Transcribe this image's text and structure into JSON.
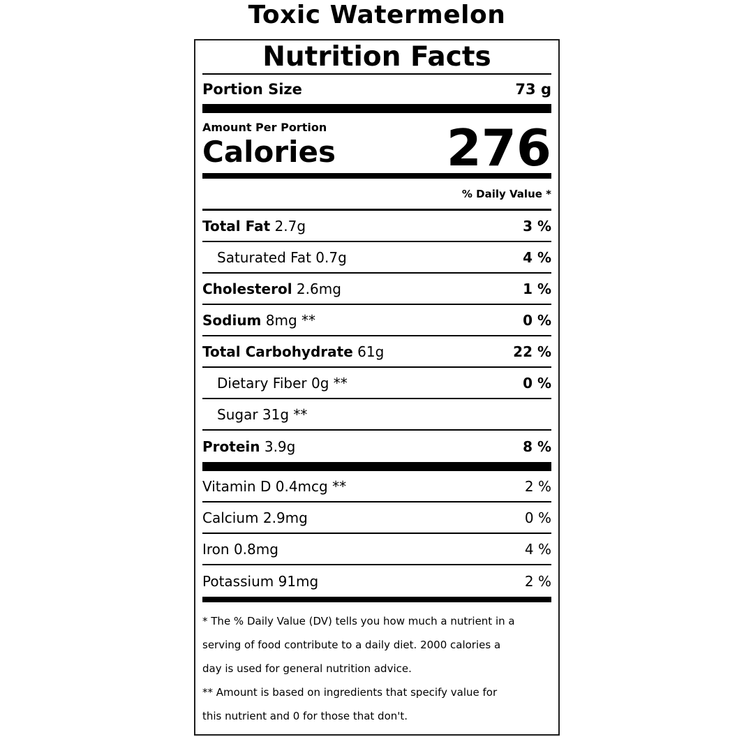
{
  "product": {
    "name": "Toxic Watermelon"
  },
  "label": {
    "heading": "Nutrition Facts",
    "portion": {
      "label": "Portion Size",
      "value": "73 g"
    },
    "amount_per_label": "Amount Per Portion",
    "calories": {
      "label": "Calories",
      "value": "276"
    },
    "daily_value_header": "% Daily Value *",
    "nutrients": [
      {
        "name": "Total Fat",
        "amount": "2.7g",
        "dv": "3 %",
        "name_bold": true,
        "dv_bold": true,
        "indent": false
      },
      {
        "name": "Saturated Fat",
        "amount": "0.7g",
        "dv": "4 %",
        "name_bold": false,
        "dv_bold": true,
        "indent": true
      },
      {
        "name": "Cholesterol",
        "amount": "2.6mg",
        "dv": "1 %",
        "name_bold": true,
        "dv_bold": true,
        "indent": false
      },
      {
        "name": "Sodium",
        "amount": "8mg **",
        "dv": "0 %",
        "name_bold": true,
        "dv_bold": true,
        "indent": false
      },
      {
        "name": "Total Carbohydrate",
        "amount": "61g",
        "dv": "22 %",
        "name_bold": true,
        "dv_bold": true,
        "indent": false
      },
      {
        "name": "Dietary Fiber",
        "amount": "0g **",
        "dv": "0 %",
        "name_bold": false,
        "dv_bold": true,
        "indent": true
      },
      {
        "name": "Sugar",
        "amount": "31g **",
        "dv": "",
        "name_bold": false,
        "dv_bold": false,
        "indent": true
      },
      {
        "name": "Protein",
        "amount": "3.9g",
        "dv": "8 %",
        "name_bold": true,
        "dv_bold": true,
        "indent": false
      }
    ],
    "micronutrients": [
      {
        "name": "Vitamin D",
        "amount": "0.4mcg **",
        "dv": "2 %"
      },
      {
        "name": "Calcium",
        "amount": "2.9mg",
        "dv": "0 %"
      },
      {
        "name": "Iron",
        "amount": "0.8mg",
        "dv": "4 %"
      },
      {
        "name": "Potassium",
        "amount": "91mg",
        "dv": "2 %"
      }
    ],
    "footnotes": [
      {
        "lines": [
          "* The % Daily Value (DV) tells you how much a nutrient in a",
          "serving of food contribute to a daily diet. 2000 calories a",
          "day is used for general nutrition advice."
        ]
      },
      {
        "lines": [
          "** Amount is based on ingredients that specify value for",
          "this nutrient and 0 for those that don't."
        ]
      }
    ]
  },
  "colors": {
    "text": "#000000",
    "rule": "#000000",
    "border": "#1c1c1c",
    "background": "#ffffff"
  }
}
